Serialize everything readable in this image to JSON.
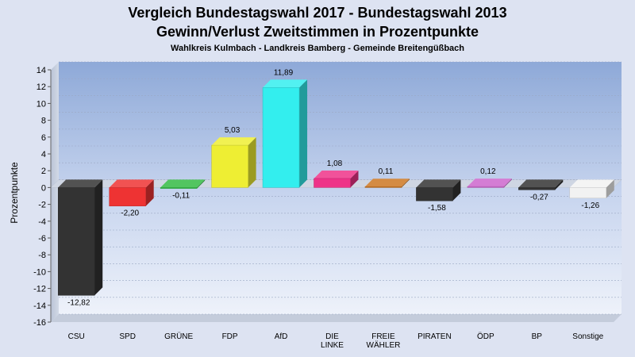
{
  "chart_data": {
    "type": "bar",
    "title": "Vergleich Bundestagswahl 2017 - Bundestagswahl 2013",
    "subtitle": "Gewinn/Verlust Zweitstimmen in Prozentpunkte",
    "caption": "Wahlkreis Kulmbach - Landkreis Bamberg - Gemeinde Breitengüßbach",
    "ylabel": "Prozentpunkte",
    "xlabel": "",
    "ylim": [
      -16,
      14
    ],
    "yticks": [
      14,
      12,
      10,
      8,
      6,
      4,
      2,
      0,
      -2,
      -4,
      -6,
      -8,
      -10,
      -12,
      -14,
      -16
    ],
    "grid": true,
    "categories": [
      "CSU",
      "SPD",
      "GRÜNE",
      "FDP",
      "AfD",
      "DIE\nLINKE",
      "FREIE\nWÄHLER",
      "PIRATEN",
      "ÖDP",
      "BP",
      "Sonstige"
    ],
    "values": [
      -12.82,
      -2.2,
      -0.11,
      5.03,
      11.89,
      1.08,
      0.11,
      -1.58,
      0.12,
      -0.27,
      -1.26
    ],
    "value_labels": [
      "-12,82",
      "-2,20",
      "-0,11",
      "5,03",
      "11,89",
      "1,08",
      "0,11",
      "-1,58",
      "0,12",
      "-0,27",
      "-1,26"
    ],
    "colors": [
      "#333333",
      "#ee3333",
      "#33bb44",
      "#eeee33",
      "#33eeee",
      "#ee3388",
      "#cc7722",
      "#333333",
      "#cc66cc",
      "#333333",
      "#f2f2f2"
    ]
  }
}
